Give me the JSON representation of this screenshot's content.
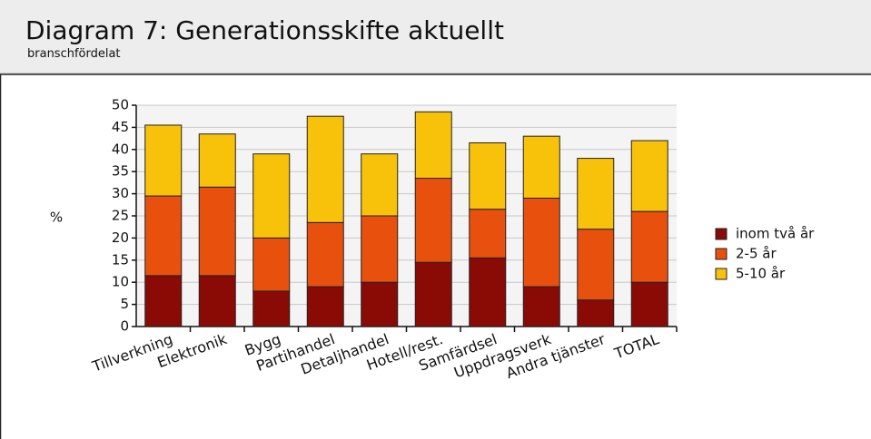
{
  "chart_data": {
    "type": "stacked_bar",
    "title": "Diagram 7: Generationsskifte aktuellt",
    "subtitle": "branschfördelat",
    "y_label": "%",
    "categories": [
      "Tillverkning",
      "Elektronik",
      "Bygg",
      "Partihandel",
      "Detaljhandel",
      "Hotell/rest.",
      "Samfärdsel",
      "Uppdragsverk",
      "Andra tjänster",
      "TOTAL"
    ],
    "series": [
      {
        "name": "inom två år",
        "color": "#8a0a06",
        "values": [
          11.5,
          11.5,
          8,
          9,
          10,
          14.5,
          15.5,
          9,
          6,
          10
        ]
      },
      {
        "name": "2-5 år",
        "color": "#e8500e",
        "values": [
          18,
          20,
          12,
          14.5,
          15,
          19,
          11,
          20,
          16,
          16
        ]
      },
      {
        "name": "5-10 år",
        "color": "#f8c20a",
        "values": [
          16,
          12,
          19,
          24,
          14,
          15,
          15,
          14,
          16,
          16
        ]
      }
    ],
    "ylim": [
      0,
      50
    ],
    "yticks": [
      0,
      5,
      10,
      15,
      20,
      25,
      30,
      35,
      40,
      45,
      50
    ],
    "grid": true,
    "legend": "right"
  }
}
